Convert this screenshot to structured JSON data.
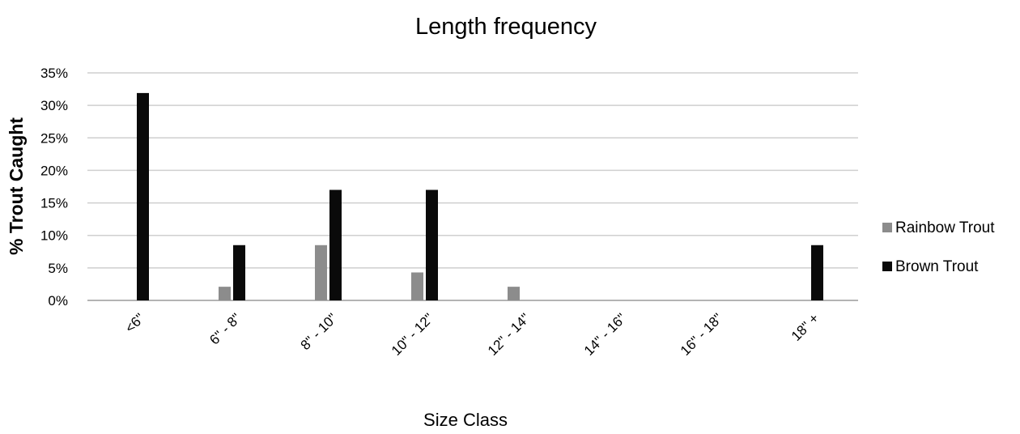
{
  "chart_data": {
    "type": "bar",
    "title": "Length frequency",
    "xlabel": "Size Class",
    "ylabel": "% Trout Caught",
    "categories": [
      "<6\"",
      "6\" - 8\"",
      "8\" - 10\"",
      "10\" - 12\"",
      "12\" - 14\"",
      "14\" - 16\"",
      "16\" - 18\"",
      "18\" +"
    ],
    "series": [
      {
        "name": "Rainbow Trout",
        "color": "#8c8c8c",
        "values": [
          0,
          2.1,
          8.5,
          4.3,
          2.1,
          0,
          0,
          0
        ]
      },
      {
        "name": "Brown Trout",
        "color": "#0a0a0a",
        "values": [
          31.9,
          8.5,
          17.0,
          17.0,
          0,
          0,
          0,
          8.5
        ]
      }
    ],
    "yticks": [
      "0%",
      "5%",
      "10%",
      "15%",
      "20%",
      "25%",
      "30%",
      "35%"
    ],
    "ylim": [
      0,
      35
    ],
    "grid": true,
    "legend_position": "right"
  }
}
